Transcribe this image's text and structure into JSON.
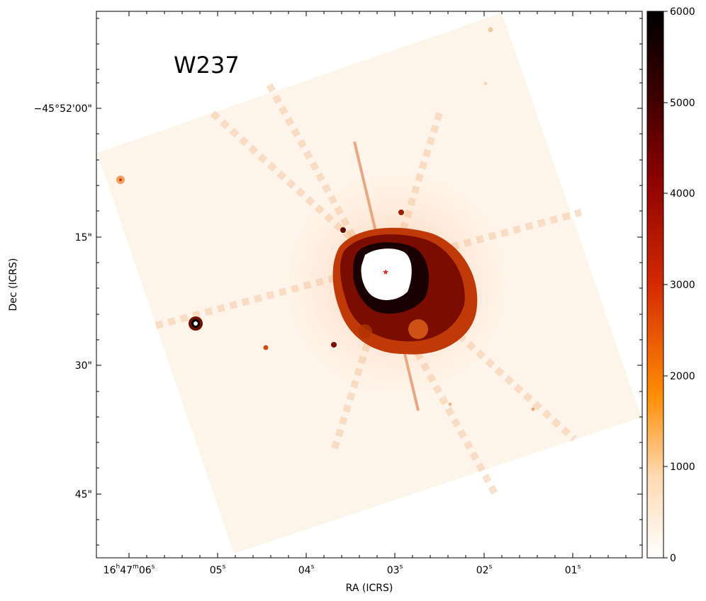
{
  "object_label": "W237",
  "axes": {
    "xlabel": "RA (ICRS)",
    "ylabel": "Dec (ICRS)",
    "x_ticks": [
      {
        "main": "16",
        "h": "h",
        "m_val": "47",
        "m": "m",
        "s_val": "06",
        "s": "s"
      },
      {
        "s_val": "05",
        "s": "s"
      },
      {
        "s_val": "04",
        "s": "s"
      },
      {
        "s_val": "03",
        "s": "s"
      },
      {
        "s_val": "02",
        "s": "s"
      },
      {
        "s_val": "01",
        "s": "s"
      }
    ],
    "y_ticks": [
      "−45°52'00\"",
      "15\"",
      "30\"",
      "45\""
    ]
  },
  "colorbar": {
    "ticks": [
      "0",
      "1000",
      "2000",
      "3000",
      "4000",
      "5000",
      "6000"
    ],
    "vmin": 0,
    "vmax": 6000,
    "cmap": "gist_heat_r",
    "colors": [
      "#ffffff",
      "#ffc383",
      "#ff8600",
      "#d32100",
      "#7f0000",
      "#000000"
    ]
  },
  "marker": {
    "symbol": "★",
    "color": "#e02020"
  }
}
